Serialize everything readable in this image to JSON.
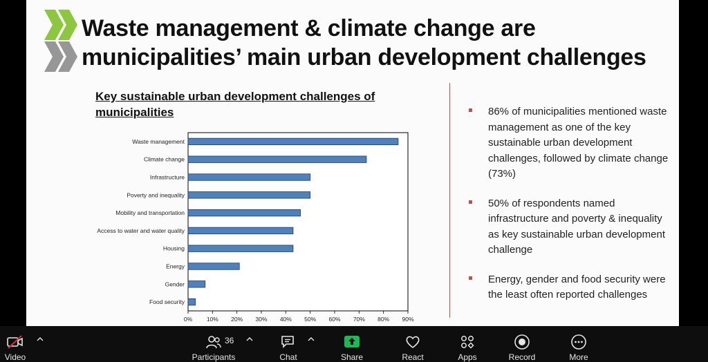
{
  "slide": {
    "title_line1": "Waste management & climate change are",
    "title_line2": "municipalities’ main urban development challenges",
    "chart_title": "Key sustainable urban development challenges of municipalities",
    "bullets": [
      {
        "text": "86% of municipalities mentioned waste management as one of the key sustainable urban development challenges, followed by climate change (73%)"
      },
      {
        "text": "50% of respondents named infrastructure and poverty & inequality as key sustainable urban development challenge"
      },
      {
        "text": "Energy, gender and food security were the least often reported challenges"
      }
    ],
    "colors": {
      "bar": "#4f81bd",
      "bullet": "#c0504d",
      "logo_green": "#8dc63f",
      "logo_gray": "#8c8c8c"
    }
  },
  "chart_data": {
    "type": "bar",
    "orientation": "horizontal",
    "title": "Key sustainable urban development challenges of municipalities",
    "categories": [
      "Waste management",
      "Climate change",
      "Infrastructure",
      "Poverty and inequality",
      "Mobility and transportation",
      "Access to water and water quality",
      "Housing",
      "Energy",
      "Gender",
      "Food security"
    ],
    "values": [
      86,
      73,
      50,
      50,
      46,
      43,
      43,
      21,
      7,
      3
    ],
    "xlim": [
      0,
      90
    ],
    "xticks": [
      "0%",
      "10%",
      "20%",
      "30%",
      "40%",
      "50%",
      "60%",
      "70%",
      "80%",
      "90%"
    ],
    "grid": false,
    "legend": "none"
  },
  "toolbar": {
    "video_label": "Video",
    "participants_label": "Participants",
    "participants_count": "36",
    "chat_label": "Chat",
    "share_label": "Share",
    "react_label": "React",
    "apps_label": "Apps",
    "record_label": "Record",
    "more_label": "More",
    "share_color": "#1db954"
  }
}
